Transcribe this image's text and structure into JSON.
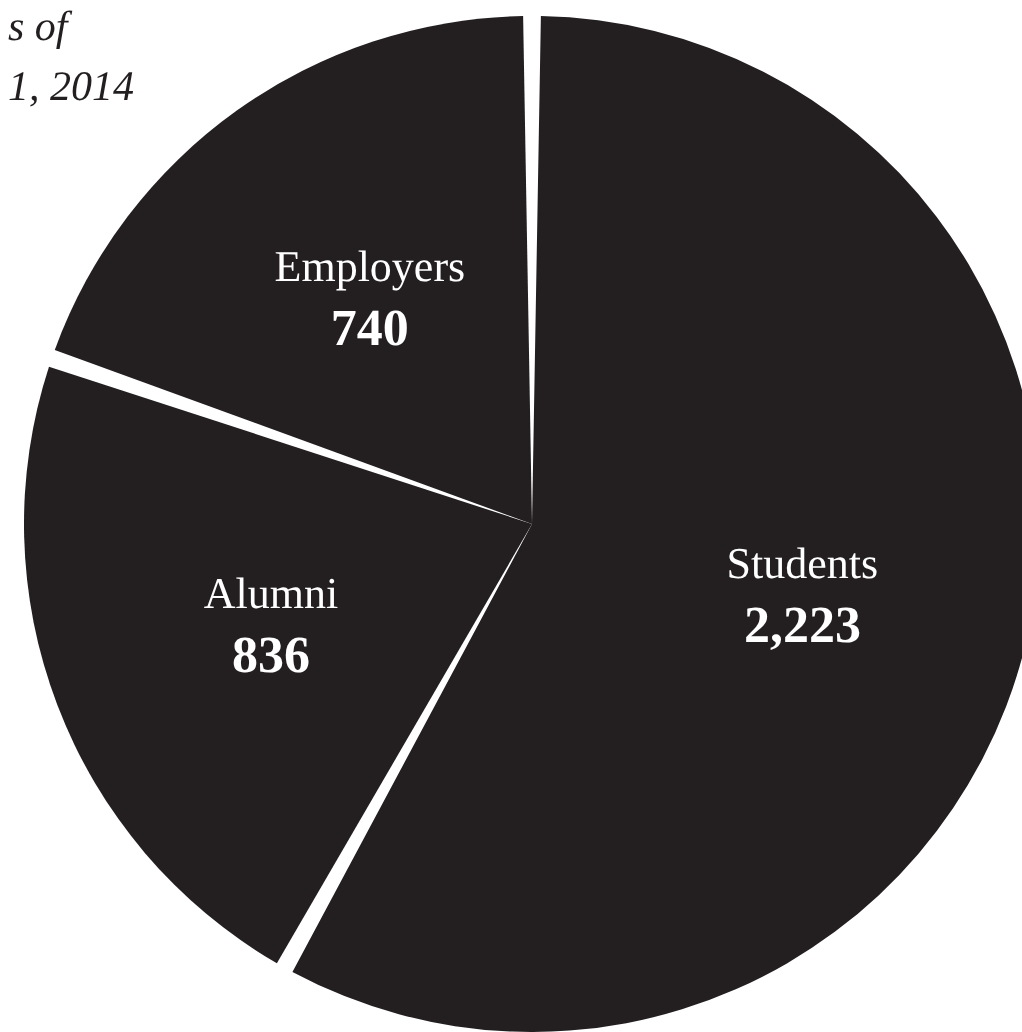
{
  "chart_data": {
    "type": "pie",
    "categories": [
      "Students",
      "Alumni",
      "Employers"
    ],
    "values": [
      2223,
      836,
      740
    ],
    "value_labels": [
      "2,223",
      "836",
      "740"
    ],
    "colors": [
      "#231f20",
      "#231f20",
      "#231f20"
    ],
    "annotations": [
      "s of",
      "1, 2014"
    ]
  }
}
